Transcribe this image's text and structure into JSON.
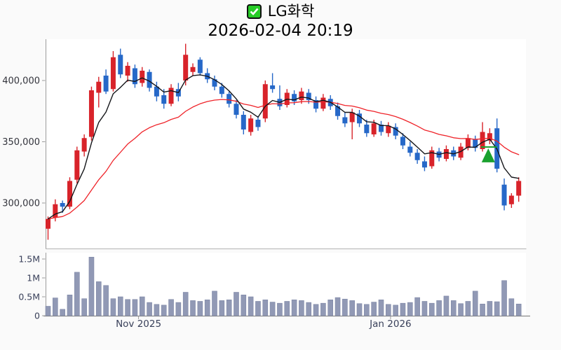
{
  "header": {
    "title": "LG화학",
    "subtitle": "2026-02-04 20:19",
    "checkbox": {
      "checked": true,
      "fill_color": "#27cc27",
      "check_color": "#ffffff"
    }
  },
  "chart_data": {
    "type": "candlestick",
    "title": "LG화학",
    "timestamp": "2026-02-04 20:19",
    "legend_position": "none",
    "grid": false,
    "price_axis": {
      "ticks": [
        {
          "label": "400,000",
          "value": 400000
        },
        {
          "label": "350,000",
          "value": 350000
        },
        {
          "label": "300,000",
          "value": 300000
        }
      ],
      "range": [
        259000,
        430000
      ]
    },
    "volume_axis": {
      "ticks": [
        {
          "label": "1.5M",
          "value": 1500000
        },
        {
          "label": "1M",
          "value": 1000000
        },
        {
          "label": "0.5M",
          "value": 500000
        },
        {
          "label": "0",
          "value": 0
        }
      ],
      "range": [
        0,
        1660000
      ]
    },
    "x_axis": {
      "ticks": [
        {
          "label": "Nov 2025",
          "index": 12.5
        },
        {
          "label": "Jan 2026",
          "index": 47.3
        }
      ]
    },
    "candles_ohlc": [
      [
        279000,
        289000,
        270000,
        287000
      ],
      [
        288000,
        303000,
        285000,
        299000
      ],
      [
        300000,
        302000,
        292000,
        297000
      ],
      [
        297000,
        321000,
        295000,
        318000
      ],
      [
        319000,
        346000,
        316000,
        343000
      ],
      [
        342000,
        356000,
        338000,
        353000
      ],
      [
        354000,
        395000,
        351000,
        392000
      ],
      [
        390000,
        403000,
        378000,
        399000
      ],
      [
        404000,
        409000,
        389000,
        391000
      ],
      [
        393000,
        424000,
        391000,
        419000
      ],
      [
        421000,
        426000,
        402000,
        405000
      ],
      [
        404000,
        415000,
        399000,
        412000
      ],
      [
        410000,
        413000,
        394000,
        397000
      ],
      [
        398000,
        411000,
        395000,
        408000
      ],
      [
        407000,
        409000,
        391000,
        394000
      ],
      [
        395000,
        399000,
        383000,
        387000
      ],
      [
        388000,
        393000,
        377000,
        381000
      ],
      [
        381000,
        397000,
        379000,
        394000
      ],
      [
        393000,
        398000,
        383000,
        387000
      ],
      [
        400000,
        430000,
        396000,
        421000
      ],
      [
        407000,
        414000,
        404000,
        411000
      ],
      [
        417000,
        419000,
        404000,
        406000
      ],
      [
        406000,
        410000,
        398000,
        401000
      ],
      [
        401000,
        404000,
        392000,
        395000
      ],
      [
        395000,
        398000,
        386000,
        389000
      ],
      [
        389000,
        391000,
        378000,
        381000
      ],
      [
        381000,
        384000,
        369000,
        372000
      ],
      [
        372000,
        375000,
        356000,
        360000
      ],
      [
        358000,
        372000,
        355000,
        369000
      ],
      [
        368000,
        371000,
        359000,
        362000
      ],
      [
        369000,
        400000,
        366000,
        397000
      ],
      [
        396000,
        406000,
        390000,
        393000
      ],
      [
        385000,
        396000,
        376000,
        379000
      ],
      [
        380000,
        393000,
        378000,
        390000
      ],
      [
        389000,
        392000,
        380000,
        383000
      ],
      [
        384000,
        394000,
        381000,
        391000
      ],
      [
        390000,
        393000,
        381000,
        384000
      ],
      [
        384000,
        387000,
        374000,
        377000
      ],
      [
        377000,
        389000,
        375000,
        386000
      ],
      [
        385000,
        388000,
        376000,
        379000
      ],
      [
        379000,
        382000,
        368000,
        371000
      ],
      [
        370000,
        374000,
        362000,
        365000
      ],
      [
        366000,
        377000,
        352000,
        374000
      ],
      [
        373000,
        376000,
        362000,
        365000
      ],
      [
        364000,
        368000,
        354000,
        357000
      ],
      [
        356000,
        368000,
        354000,
        365000
      ],
      [
        364000,
        367000,
        355000,
        358000
      ],
      [
        357000,
        366000,
        354000,
        363000
      ],
      [
        362000,
        365000,
        352000,
        355000
      ],
      [
        354000,
        357000,
        344000,
        347000
      ],
      [
        346000,
        350000,
        338000,
        341000
      ],
      [
        341000,
        344000,
        332000,
        335000
      ],
      [
        334000,
        338000,
        326000,
        329000
      ],
      [
        330000,
        346000,
        328000,
        343000
      ],
      [
        342000,
        345000,
        334000,
        337000
      ],
      [
        336000,
        347000,
        334000,
        344000
      ],
      [
        343000,
        346000,
        335000,
        338000
      ],
      [
        337000,
        349000,
        335000,
        346000
      ],
      [
        345000,
        356000,
        343000,
        353000
      ],
      [
        352000,
        355000,
        342000,
        345000
      ],
      [
        344000,
        366000,
        342000,
        358000
      ],
      [
        351000,
        361000,
        348000,
        357000
      ],
      [
        361000,
        369000,
        325000,
        328000
      ],
      [
        315000,
        320000,
        294000,
        298000
      ],
      [
        299000,
        308000,
        296000,
        306000
      ],
      [
        306000,
        321000,
        301000,
        318000
      ]
    ],
    "volumes": [
      250000,
      470000,
      170000,
      550000,
      1150000,
      450000,
      1550000,
      900000,
      800000,
      450000,
      500000,
      430000,
      430000,
      500000,
      350000,
      300000,
      280000,
      430000,
      350000,
      620000,
      400000,
      380000,
      420000,
      650000,
      400000,
      420000,
      620000,
      550000,
      500000,
      380000,
      420000,
      360000,
      330000,
      380000,
      420000,
      400000,
      350000,
      300000,
      330000,
      420000,
      480000,
      440000,
      400000,
      320000,
      300000,
      360000,
      420000,
      300000,
      280000,
      330000,
      350000,
      480000,
      380000,
      330000,
      400000,
      520000,
      400000,
      320000,
      380000,
      650000,
      310000,
      380000,
      370000,
      930000,
      450000,
      310000
    ],
    "overlays": {
      "ma_fast": {
        "name": "EMA5",
        "color": "#15161a"
      },
      "ma_slow": {
        "name": "EMA20",
        "color": "#ef2329"
      }
    },
    "marker": {
      "shape": "triangle-up",
      "color": "#1aa12e",
      "index": 60.8,
      "price_top": 344600,
      "price_base": 333200,
      "line": {
        "price": 345700,
        "index_from": 59.8,
        "index_to": 62.0
      }
    },
    "colors": {
      "up": "#d8232a",
      "down": "#2668c8",
      "volume_bar": "#9199b5",
      "volume_bar_edge": "#7e87a6",
      "background": "#fafafa",
      "panel": "#ffffff",
      "spine": "#9c9c9c",
      "price_label": "#33343c",
      "axis_label": "#39405a"
    }
  }
}
